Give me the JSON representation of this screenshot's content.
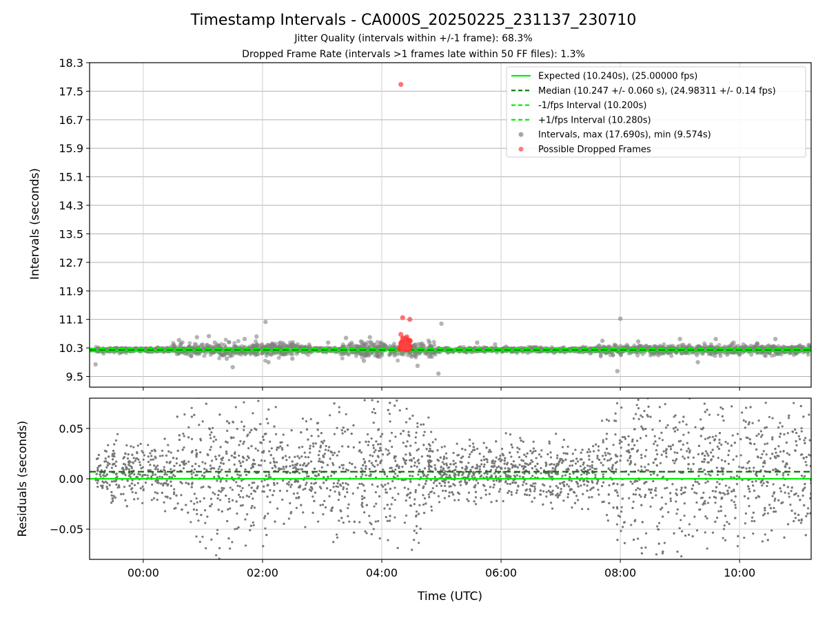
{
  "chart_data": [
    {
      "type": "scatter",
      "title": "Timestamp Intervals - CA000S_20250225_231137_230710",
      "subtitle_1": "Jitter Quality (intervals within +/-1 frame): 68.3%",
      "subtitle_2": "Dropped Frame Rate (intervals >1 frames late within 50 FF files): 1.3%",
      "xlabel": "",
      "ylabel": "Intervals (seconds)",
      "xlim": [
        -0.9,
        11.2
      ],
      "ylim": [
        9.2,
        18.3
      ],
      "x_ticks": [
        0,
        2,
        4,
        6,
        8,
        10
      ],
      "x_tick_labels": [
        "00:00",
        "02:00",
        "04:00",
        "06:00",
        "08:00",
        "10:00"
      ],
      "y_ticks": [
        9.5,
        10.3,
        11.1,
        11.9,
        12.7,
        13.5,
        14.3,
        15.1,
        15.9,
        16.7,
        17.5,
        18.3
      ],
      "y_tick_labels": [
        "9.5",
        "10.3",
        "11.1",
        "11.9",
        "12.7",
        "13.5",
        "14.3",
        "15.1",
        "15.9",
        "16.7",
        "17.5",
        "18.3"
      ],
      "grid": true,
      "legend_position": "top-right",
      "lines": [
        {
          "name": "Expected (10.240s), (25.00000 fps)",
          "y": 10.24,
          "color": "#00ee00",
          "style": "solid"
        },
        {
          "name": "Median (10.247 +/- 0.060 s), (24.98311 +/- 0.14 fps)",
          "y": 10.247,
          "color": "#007700",
          "style": "dashed"
        },
        {
          "name": "-1/fps Interval (10.200s)",
          "y": 10.2,
          "color": "#00ee00",
          "style": "dashed"
        },
        {
          "name": "+1/fps Interval (10.280s)",
          "y": 10.28,
          "color": "#00ee00",
          "style": "dashed"
        }
      ],
      "series": [
        {
          "name": "Intervals, max (17.690s), min (9.574s)",
          "color": "#808080",
          "max": 17.69,
          "min": 9.574,
          "points": [
            [
              -0.8,
              9.84
            ],
            [
              -0.6,
              10.25
            ],
            [
              -0.3,
              10.22
            ],
            [
              0.1,
              10.28
            ],
            [
              0.4,
              10.3
            ],
            [
              0.6,
              10.52
            ],
            [
              0.9,
              10.6
            ],
            [
              1.1,
              10.63
            ],
            [
              1.2,
              10.45
            ],
            [
              1.4,
              10.0
            ],
            [
              1.5,
              9.76
            ],
            [
              1.7,
              10.55
            ],
            [
              1.9,
              10.62
            ],
            [
              2.05,
              11.03
            ],
            [
              2.1,
              9.9
            ],
            [
              2.3,
              10.45
            ],
            [
              2.5,
              10.0
            ],
            [
              2.8,
              10.25
            ],
            [
              3.1,
              10.45
            ],
            [
              3.4,
              10.58
            ],
            [
              3.7,
              9.94
            ],
            [
              3.8,
              10.6
            ],
            [
              4.0,
              10.42
            ],
            [
              4.2,
              10.2
            ],
            [
              4.6,
              9.8
            ],
            [
              4.8,
              10.45
            ],
            [
              4.95,
              9.58
            ],
            [
              5.0,
              10.98
            ],
            [
              5.3,
              10.2
            ],
            [
              5.6,
              10.45
            ],
            [
              5.9,
              10.4
            ],
            [
              6.2,
              10.24
            ],
            [
              6.8,
              10.26
            ],
            [
              7.4,
              10.3
            ],
            [
              7.7,
              10.5
            ],
            [
              7.95,
              9.65
            ],
            [
              8.0,
              11.12
            ],
            [
              8.3,
              10.48
            ],
            [
              8.7,
              10.2
            ],
            [
              9.0,
              10.55
            ],
            [
              9.3,
              9.9
            ],
            [
              9.6,
              10.55
            ],
            [
              9.9,
              10.45
            ],
            [
              10.3,
              10.4
            ],
            [
              10.6,
              10.55
            ],
            [
              11.0,
              10.35
            ],
            [
              11.15,
              10.2
            ]
          ]
        },
        {
          "name": "Possible Dropped Frames",
          "color": "#ff4444",
          "points": [
            [
              4.32,
              17.69
            ],
            [
              4.35,
              11.15
            ],
            [
              4.47,
              11.1
            ],
            [
              4.32,
              10.68
            ],
            [
              4.36,
              10.58
            ],
            [
              4.4,
              10.48
            ],
            [
              4.33,
              10.4
            ],
            [
              4.38,
              10.35
            ],
            [
              4.42,
              10.42
            ],
            [
              4.45,
              10.3
            ],
            [
              4.35,
              10.3
            ],
            [
              4.41,
              10.28
            ]
          ]
        }
      ]
    },
    {
      "type": "scatter",
      "title": "",
      "xlabel": "Time (UTC)",
      "ylabel": "Residuals (seconds)",
      "xlim": [
        -0.9,
        11.2
      ],
      "ylim": [
        -0.08,
        0.08
      ],
      "x_ticks": [
        0,
        2,
        4,
        6,
        8,
        10
      ],
      "x_tick_labels": [
        "00:00",
        "02:00",
        "04:00",
        "06:00",
        "08:00",
        "10:00"
      ],
      "y_ticks": [
        -0.05,
        0.0,
        0.05
      ],
      "y_tick_labels": [
        "−0.05",
        "0.00",
        "0.05"
      ],
      "grid": true,
      "lines": [
        {
          "name": "Expected",
          "y": 0.0,
          "color": "#00ee00",
          "style": "solid"
        },
        {
          "name": "Median",
          "y": 0.007,
          "color": "#007700",
          "style": "dashed"
        }
      ],
      "series": [
        {
          "name": "Residuals",
          "color": "#777777",
          "x_range": [
            -0.8,
            11.2
          ],
          "spread_by_hour": [
            [
              -0.8,
              0.02
            ],
            [
              0.5,
              0.03
            ],
            [
              1.0,
              0.06
            ],
            [
              2.0,
              0.06
            ],
            [
              2.5,
              0.03
            ],
            [
              3.5,
              0.06
            ],
            [
              4.5,
              0.06
            ],
            [
              5.0,
              0.02
            ],
            [
              7.5,
              0.025
            ],
            [
              8.0,
              0.06
            ],
            [
              9.0,
              0.06
            ],
            [
              11.2,
              0.05
            ]
          ]
        }
      ]
    }
  ]
}
